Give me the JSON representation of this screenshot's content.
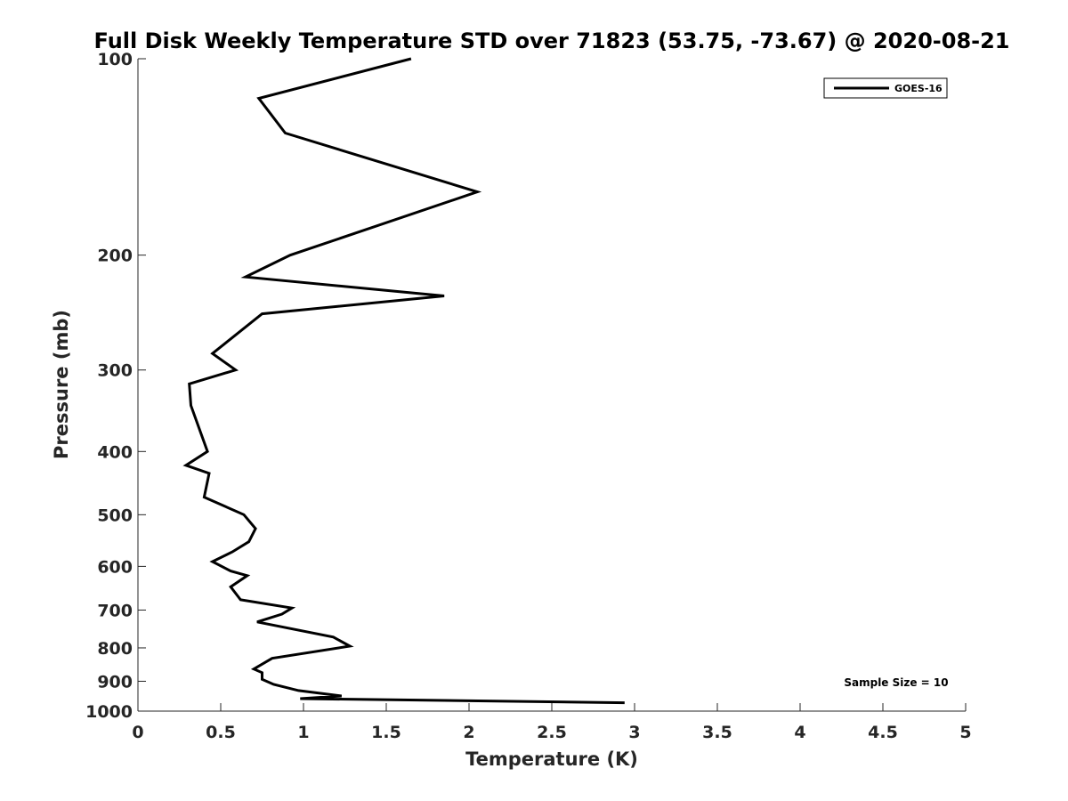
{
  "chart_data": {
    "type": "line",
    "title": "Full Disk Weekly Temperature STD over 71823 (53.75, -73.67) @ 2020-08-21",
    "xlabel": "Temperature (K)",
    "ylabel": "Pressure (mb)",
    "xlim": [
      0,
      5
    ],
    "ylim": [
      100,
      1000
    ],
    "y_scale": "log",
    "y_reversed": true,
    "x_ticks": [
      "0",
      "0.5",
      "1",
      "1.5",
      "2",
      "2.5",
      "3",
      "3.5",
      "4",
      "4.5",
      "5"
    ],
    "y_ticks": [
      "100",
      "200",
      "300",
      "400",
      "500",
      "600",
      "700",
      "800",
      "900",
      "1000"
    ],
    "grid": false,
    "legend_position": "top-right",
    "series": [
      {
        "name": "GOES-16",
        "color": "#000000",
        "x": [
          1.65,
          0.73,
          0.89,
          2.05,
          0.92,
          0.65,
          1.85,
          0.75,
          0.45,
          0.59,
          0.31,
          0.32,
          0.42,
          0.29,
          0.43,
          0.4,
          0.64,
          0.71,
          0.67,
          0.57,
          0.45,
          0.56,
          0.66,
          0.56,
          0.62,
          0.93,
          0.87,
          0.72,
          1.18,
          1.28,
          0.81,
          0.7,
          0.75,
          0.75,
          0.82,
          0.97,
          1.23,
          0.98,
          2.94
        ],
        "y": [
          100,
          115,
          130,
          160,
          200,
          216,
          231,
          246,
          283,
          300,
          315,
          340,
          400,
          420,
          432,
          470,
          500,
          525,
          550,
          570,
          590,
          610,
          620,
          645,
          675,
          695,
          710,
          730,
          770,
          795,
          830,
          862,
          873,
          894,
          910,
          930,
          948,
          957,
          971
        ]
      }
    ],
    "annotations": [
      "Sample Size = 10"
    ]
  }
}
